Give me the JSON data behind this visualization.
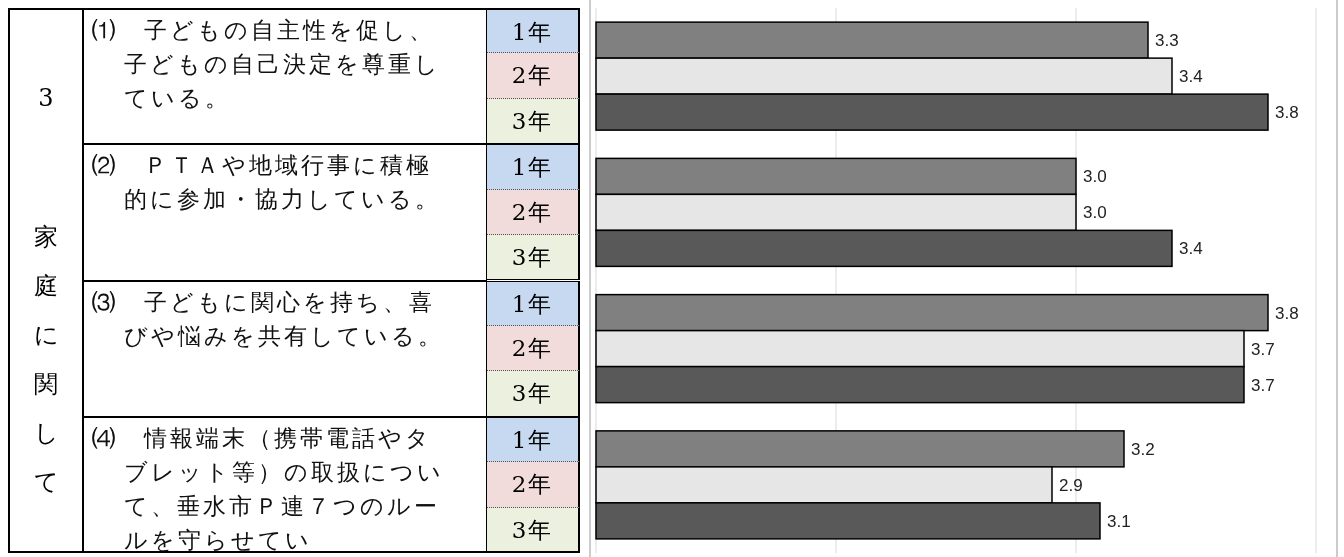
{
  "chart_data": {
    "type": "bar",
    "orientation": "horizontal",
    "title": "3",
    "ylabel": "家庭に関して",
    "categories": [
      "⑴　子どもの自主性を促し、子どもの自己決定を尊重している。",
      "⑵　ＰＴＡや地域行事に積極的に参加・協力している。",
      "⑶　子どもに関心を持ち、喜びや悩みを共有している。",
      "⑷　情報端末（携帯電話やタブレット等）の取扱について、垂水市Ｐ連７つのルールを守らせてい"
    ],
    "series": [
      {
        "name": "1年",
        "color": "#808080",
        "values": [
          3.3,
          3.0,
          3.8,
          3.2
        ],
        "value_labels": [
          "3.3",
          "3.0",
          "3.8",
          "3.2"
        ]
      },
      {
        "name": "2年",
        "color": "#e6e6e6",
        "values": [
          3.4,
          3.0,
          3.7,
          2.9
        ],
        "value_labels": [
          "3.4",
          "3.0",
          "3.7",
          "2.9"
        ]
      },
      {
        "name": "3年",
        "color": "#595959",
        "values": [
          3.8,
          3.4,
          3.7,
          3.1
        ],
        "value_labels": [
          "3.8",
          "3.4",
          "3.7",
          "3.1"
        ]
      }
    ],
    "xlim": [
      1,
      4
    ],
    "xticks": [
      {
        "value": 1,
        "label": null
      },
      {
        "value": 2,
        "label": null
      },
      {
        "value": 3,
        "label": null
      },
      {
        "value": 4,
        "label": null
      }
    ],
    "grid": "x",
    "tick_labels": "y",
    "legend": "left"
  }
}
